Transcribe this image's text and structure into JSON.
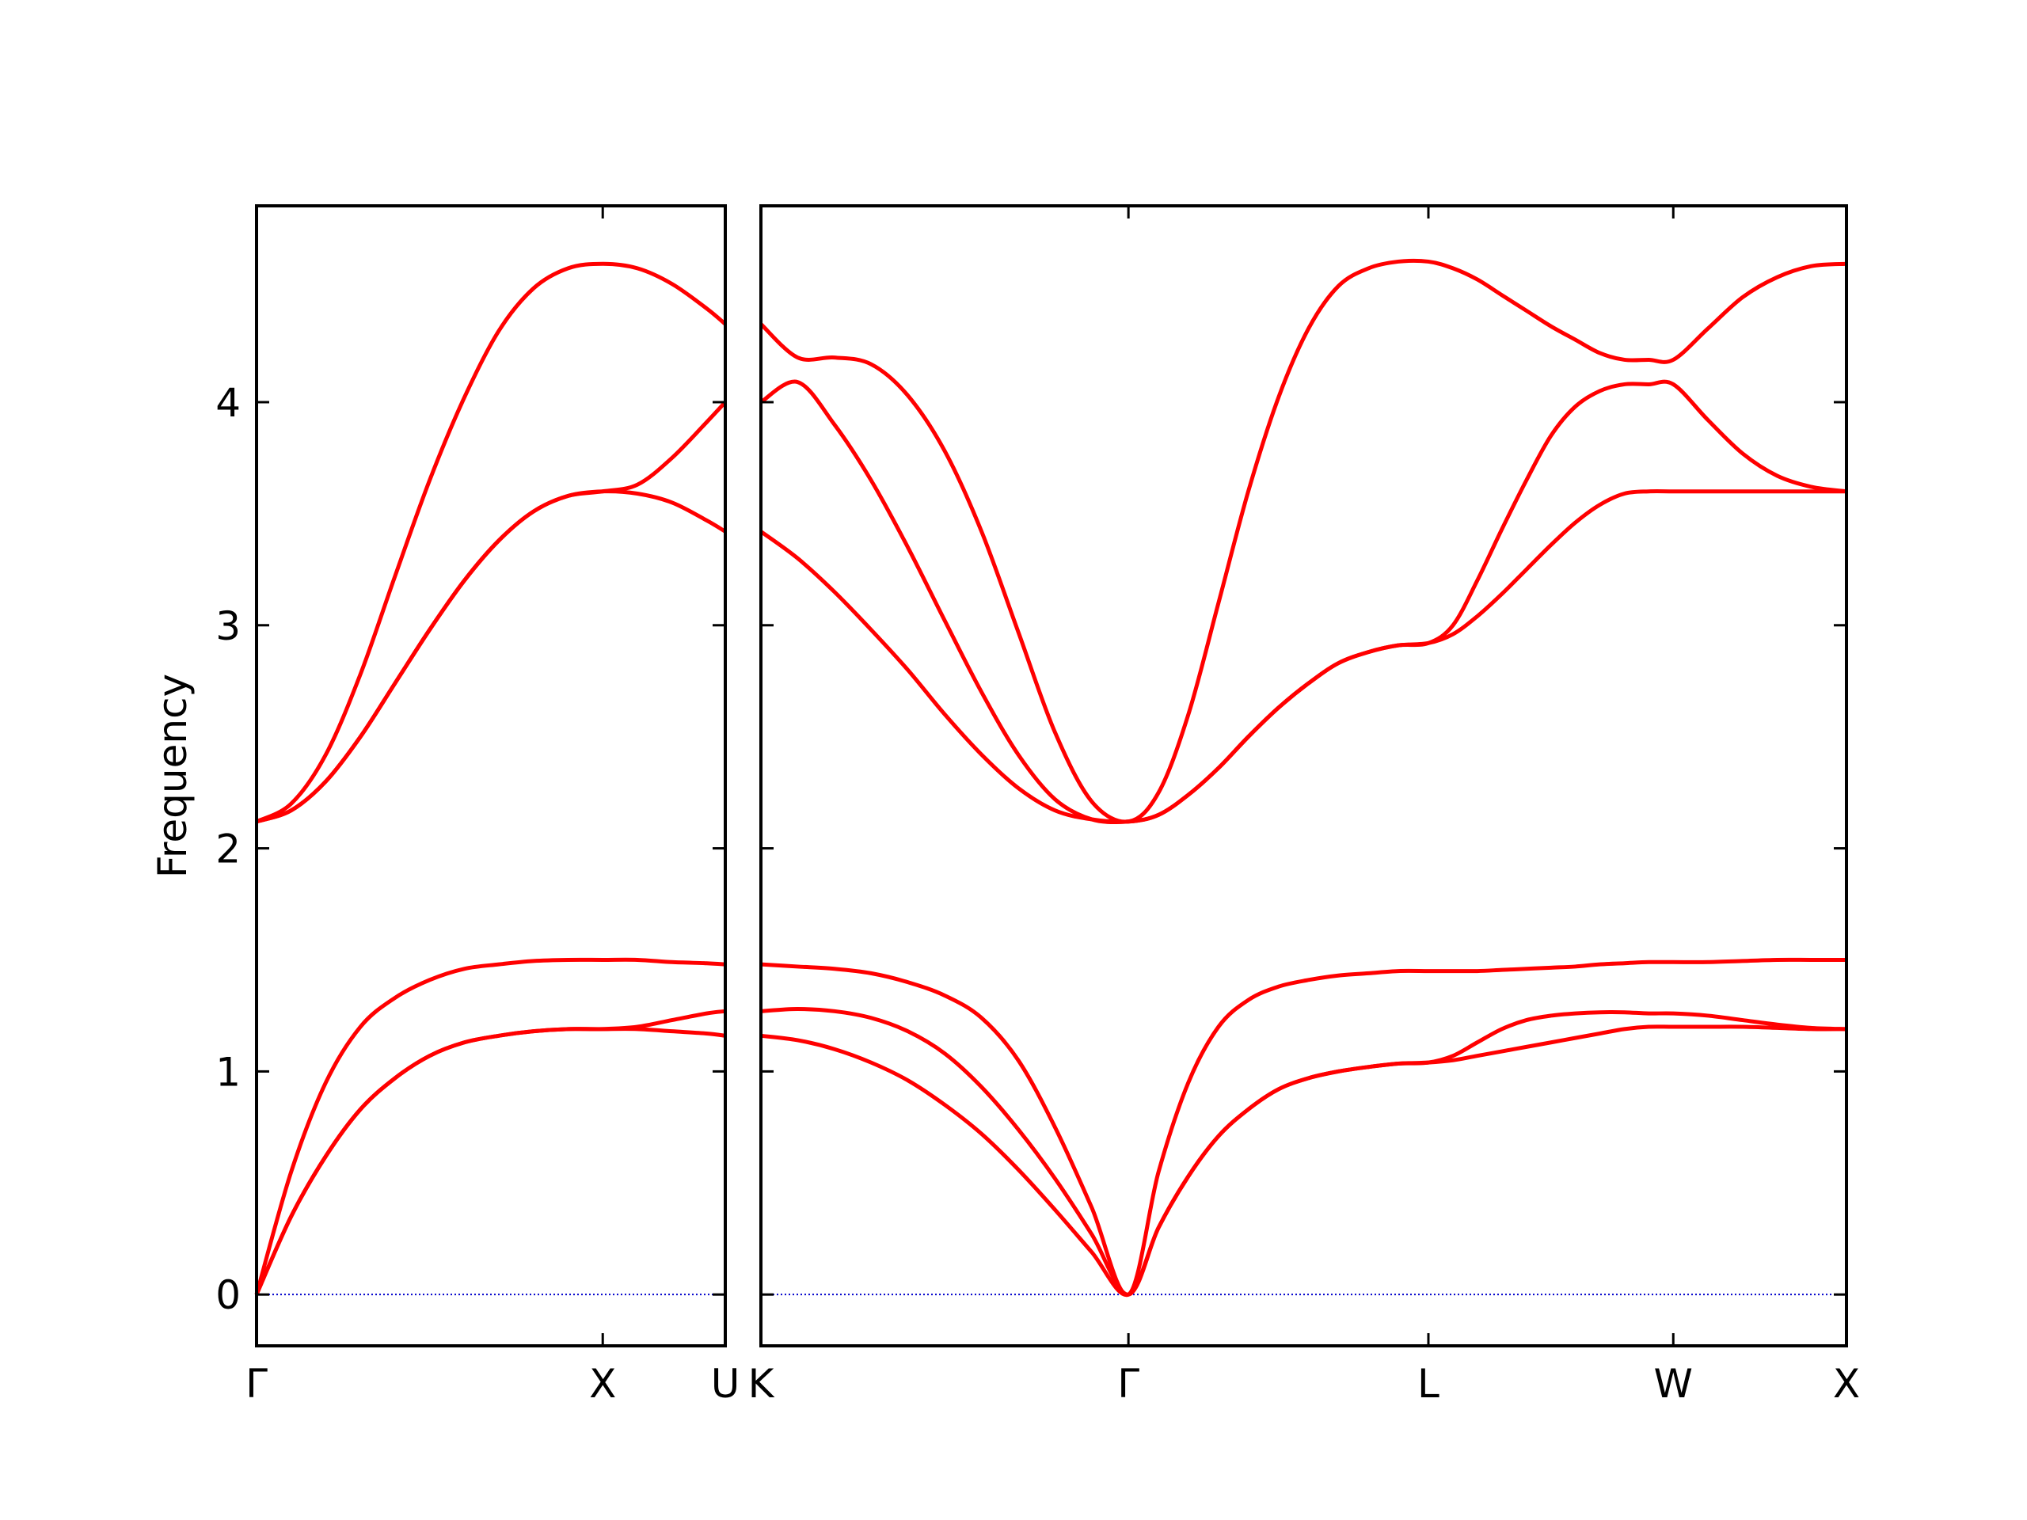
{
  "chart_data": [
    {
      "type": "line",
      "y_label": "Frequency",
      "x": [
        0,
        0.1,
        0.2,
        0.3,
        0.4,
        0.5,
        0.6,
        0.7,
        0.8,
        0.9,
        1.0,
        1.1,
        1.2,
        1.3,
        1.354
      ],
      "series": [
        {
          "color": "#ff0000",
          "values": [
            0,
            0.35,
            0.62,
            0.83,
            0.97,
            1.07,
            1.13,
            1.16,
            1.18,
            1.19,
            1.19,
            1.19,
            1.18,
            1.17,
            1.16
          ]
        },
        {
          "color": "#ff0000",
          "values": [
            0,
            0.35,
            0.62,
            0.83,
            0.97,
            1.07,
            1.13,
            1.16,
            1.18,
            1.19,
            1.19,
            1.2,
            1.23,
            1.26,
            1.27
          ]
        },
        {
          "color": "#ff0000",
          "values": [
            0,
            0.55,
            0.95,
            1.2,
            1.33,
            1.41,
            1.46,
            1.48,
            1.495,
            1.5,
            1.5,
            1.5,
            1.49,
            1.485,
            1.48
          ]
        },
        {
          "color": "#ff0000",
          "values": [
            2.12,
            2.17,
            2.3,
            2.5,
            2.74,
            2.98,
            3.2,
            3.38,
            3.51,
            3.58,
            3.6,
            3.59,
            3.55,
            3.47,
            3.42
          ]
        },
        {
          "color": "#ff0000",
          "values": [
            2.12,
            2.17,
            2.3,
            2.5,
            2.74,
            2.98,
            3.2,
            3.38,
            3.51,
            3.58,
            3.6,
            3.63,
            3.75,
            3.91,
            4.0
          ]
        },
        {
          "color": "#ff0000",
          "values": [
            2.12,
            2.2,
            2.42,
            2.78,
            3.22,
            3.65,
            4.02,
            4.32,
            4.51,
            4.6,
            4.62,
            4.6,
            4.53,
            4.42,
            4.35
          ]
        }
      ],
      "xlim": [
        0,
        1.354
      ],
      "xticks": [
        {
          "value": 0,
          "label": "Γ"
        },
        {
          "value": 1.0,
          "label": "X"
        },
        {
          "value": 1.354,
          "label": "U"
        }
      ],
      "ylim": [
        -0.23,
        4.88
      ],
      "yticks": [
        0,
        1,
        2,
        3,
        4
      ],
      "show_ytick_labels": true,
      "zero_line": true,
      "zero_line_color": "#0000cc"
    },
    {
      "type": "line",
      "x": [
        1.354,
        1.46,
        1.566,
        1.672,
        1.778,
        1.885,
        1.991,
        2.097,
        2.203,
        2.309,
        2.415,
        2.502,
        2.588,
        2.675,
        2.761,
        2.848,
        2.935,
        3.021,
        3.108,
        3.194,
        3.281,
        3.352,
        3.422,
        3.493,
        3.564,
        3.635,
        3.705,
        3.776,
        3.847,
        3.917,
        3.988,
        4.088,
        4.188,
        4.288,
        4.388,
        4.488
      ],
      "series": [
        {
          "color": "#ff0000",
          "values": [
            1.16,
            1.14,
            1.1,
            1.04,
            0.96,
            0.85,
            0.72,
            0.56,
            0.38,
            0.19,
            0,
            0.3,
            0.53,
            0.71,
            0.83,
            0.92,
            0.97,
            1.0,
            1.02,
            1.035,
            1.04,
            1.05,
            1.07,
            1.09,
            1.11,
            1.13,
            1.15,
            1.17,
            1.19,
            1.2,
            1.2,
            1.2,
            1.2,
            1.195,
            1.19,
            1.19
          ]
        },
        {
          "color": "#ff0000",
          "values": [
            1.27,
            1.28,
            1.27,
            1.24,
            1.18,
            1.08,
            0.93,
            0.74,
            0.52,
            0.27,
            0,
            0.3,
            0.53,
            0.71,
            0.83,
            0.92,
            0.97,
            1.0,
            1.02,
            1.035,
            1.04,
            1.07,
            1.13,
            1.19,
            1.23,
            1.25,
            1.26,
            1.265,
            1.265,
            1.26,
            1.26,
            1.25,
            1.23,
            1.21,
            1.195,
            1.19
          ]
        },
        {
          "color": "#ff0000",
          "values": [
            1.48,
            1.47,
            1.46,
            1.44,
            1.4,
            1.34,
            1.24,
            1.05,
            0.75,
            0.39,
            0,
            0.55,
            0.95,
            1.2,
            1.32,
            1.38,
            1.41,
            1.43,
            1.44,
            1.45,
            1.45,
            1.45,
            1.45,
            1.455,
            1.46,
            1.465,
            1.47,
            1.48,
            1.485,
            1.49,
            1.49,
            1.49,
            1.495,
            1.5,
            1.5,
            1.5
          ]
        },
        {
          "color": "#ff0000",
          "values": [
            3.42,
            3.3,
            3.15,
            2.98,
            2.8,
            2.6,
            2.42,
            2.27,
            2.17,
            2.13,
            2.12,
            2.15,
            2.24,
            2.36,
            2.5,
            2.63,
            2.74,
            2.83,
            2.88,
            2.91,
            2.92,
            2.96,
            3.04,
            3.14,
            3.25,
            3.36,
            3.46,
            3.54,
            3.59,
            3.6,
            3.6,
            3.6,
            3.6,
            3.6,
            3.6,
            3.6
          ]
        },
        {
          "color": "#ff0000",
          "values": [
            4.0,
            4.09,
            3.9,
            3.65,
            3.35,
            3.02,
            2.7,
            2.42,
            2.22,
            2.13,
            2.12,
            2.15,
            2.24,
            2.36,
            2.5,
            2.63,
            2.74,
            2.83,
            2.88,
            2.91,
            2.92,
            3.0,
            3.2,
            3.43,
            3.65,
            3.85,
            3.98,
            4.05,
            4.08,
            4.08,
            4.08,
            3.92,
            3.77,
            3.67,
            3.62,
            3.6
          ]
        },
        {
          "color": "#ff0000",
          "values": [
            4.35,
            4.2,
            4.2,
            4.17,
            4.03,
            3.78,
            3.42,
            2.97,
            2.52,
            2.21,
            2.12,
            2.25,
            2.6,
            3.1,
            3.6,
            4.02,
            4.33,
            4.52,
            4.6,
            4.63,
            4.63,
            4.6,
            4.55,
            4.48,
            4.41,
            4.34,
            4.28,
            4.22,
            4.19,
            4.19,
            4.19,
            4.33,
            4.47,
            4.56,
            4.61,
            4.62
          ]
        }
      ],
      "xlim": [
        1.354,
        4.488
      ],
      "xticks": [
        {
          "value": 1.354,
          "label": "K"
        },
        {
          "value": 2.415,
          "label": "Γ"
        },
        {
          "value": 3.281,
          "label": "L"
        },
        {
          "value": 3.988,
          "label": "W"
        },
        {
          "value": 4.488,
          "label": "X"
        }
      ],
      "ylim": [
        -0.23,
        4.88
      ],
      "yticks": [
        0,
        1,
        2,
        3,
        4
      ],
      "show_ytick_labels": false,
      "zero_line": true,
      "zero_line_color": "#0000cc"
    }
  ]
}
